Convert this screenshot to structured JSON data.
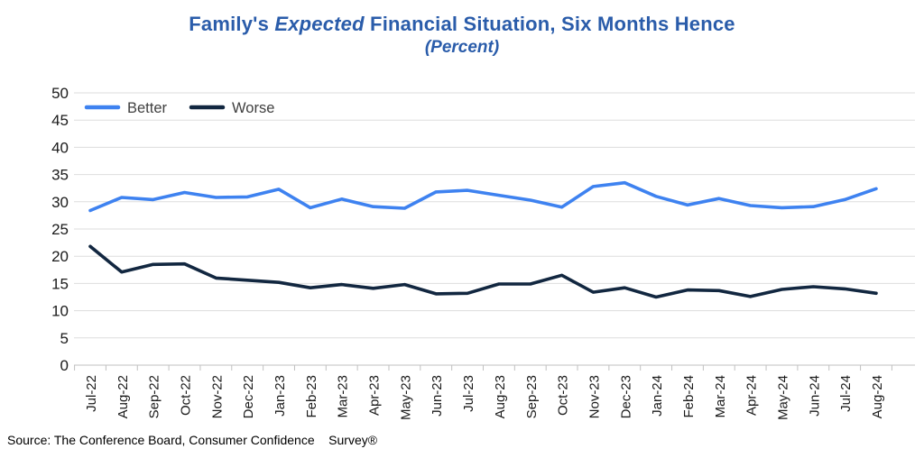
{
  "title": {
    "prefix": "Family's ",
    "italic": "Expected",
    "suffix": " Financial Situation, Six Months Hence",
    "subtitle": "(Percent)"
  },
  "source": "Source: The Conference Board, Consumer Confidence    Survey®",
  "colors": {
    "title": "#2A5CAA",
    "better": "#3E82F0",
    "worse": "#122740",
    "grid": "#DDDDDD",
    "axis": "#C0C0C0",
    "axis_text": "#1A1A1A",
    "legend_text": "#404040"
  },
  "chart_data": {
    "type": "line",
    "title": "Family's Expected Financial Situation, Six Months Hence",
    "subtitle": "(Percent)",
    "ylim": [
      0,
      50
    ],
    "ytick_step": 5,
    "grid": true,
    "legend_position": "top-left-inside",
    "categories": [
      "Jul-22",
      "Aug-22",
      "Sep-22",
      "Oct-22",
      "Nov-22",
      "Dec-22",
      "Jan-23",
      "Feb-23",
      "Mar-23",
      "Apr-23",
      "May-23",
      "Jun-23",
      "Jul-23",
      "Aug-23",
      "Sep-23",
      "Oct-23",
      "Nov-23",
      "Dec-23",
      "Jan-24",
      "Feb-24",
      "Mar-24",
      "Apr-24",
      "May-24",
      "Jun-24",
      "Jul-24",
      "Aug-24"
    ],
    "series": [
      {
        "name": "Better",
        "color_key": "better",
        "values": [
          28.4,
          30.8,
          30.4,
          31.7,
          30.8,
          30.9,
          32.3,
          28.9,
          30.5,
          29.1,
          28.8,
          31.8,
          32.1,
          31.2,
          30.3,
          29.0,
          32.8,
          33.5,
          31.0,
          29.4,
          30.6,
          29.3,
          28.9,
          29.1,
          30.4,
          32.4
        ]
      },
      {
        "name": "Worse",
        "color_key": "worse",
        "values": [
          21.8,
          17.1,
          18.5,
          18.6,
          16.0,
          15.6,
          15.2,
          14.2,
          14.8,
          14.1,
          14.8,
          13.1,
          13.2,
          14.9,
          14.9,
          16.5,
          13.4,
          14.2,
          12.5,
          13.8,
          13.7,
          12.6,
          13.9,
          14.4,
          14.0,
          13.2
        ]
      }
    ]
  }
}
